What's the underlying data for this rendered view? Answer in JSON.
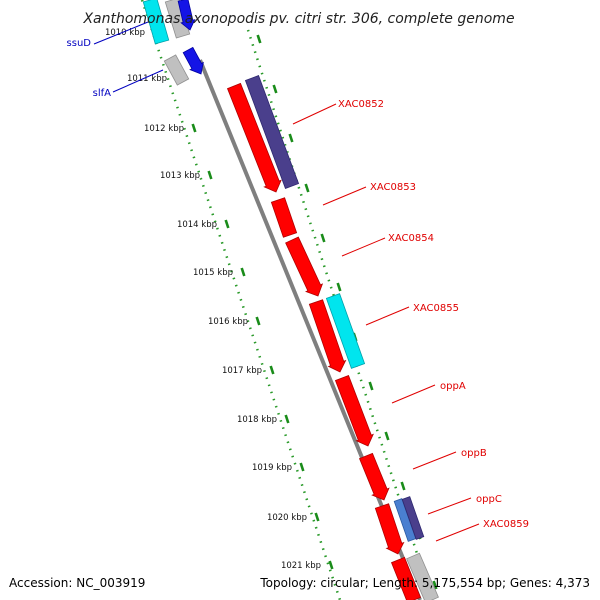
{
  "title": "Xanthomonas axonopodis pv. citri str. 306, complete genome",
  "accession": "Accession: NC_003919",
  "topology": "Topology: circular; Length: 5,175,554 bp; Genes: 4,373",
  "colors": {
    "backbone": "#7f7f7f",
    "red_gene": "#ff0000",
    "red_gene_edge": "#b00000",
    "purple_gene": "#4a3f8c",
    "cyan_gene": "#00e5ee",
    "blue_gene": "#1414e6",
    "grey_gene": "#c0c0c0",
    "ruler_dash": "#1a8c1a",
    "red_label": "#e00000",
    "blue_label": "#0000c0"
  },
  "scale_labels": [
    "1010 kbp",
    "1011 kbp",
    "1012 kbp",
    "1013 kbp",
    "1014 kbp",
    "1015 kbp",
    "1016 kbp",
    "1017 kbp",
    "1018 kbp",
    "1019 kbp",
    "1020 kbp",
    "1021 kbp"
  ],
  "gene_labels": {
    "ssuD": "ssuD",
    "slfA": "slfA",
    "XAC0852": "XAC0852",
    "XAC0853": "XAC0853",
    "XAC0854": "XAC0854",
    "XAC0855": "XAC0855",
    "oppA": "oppA",
    "oppB": "oppB",
    "oppC": "oppC",
    "XAC0859": "XAC0859"
  }
}
